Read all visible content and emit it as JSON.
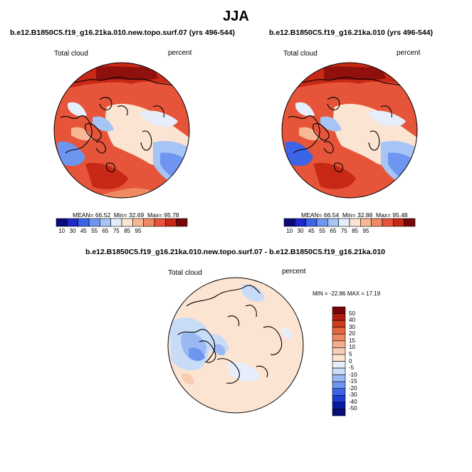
{
  "page_title": "JJA",
  "colors": {
    "red_scale": [
      "#0a0a7a",
      "#1e28c8",
      "#3c64e6",
      "#6e96f0",
      "#a6c4f6",
      "#e6eefb",
      "#fbe4d2",
      "#f7b896",
      "#f18a62",
      "#e6553a",
      "#c82816",
      "#78050a"
    ],
    "diff_scale": [
      "#0a0a7a",
      "#0a1aa0",
      "#1e3cd2",
      "#3c64e6",
      "#6e96f0",
      "#9ab8f4",
      "#c8dcf8",
      "#e6eefb",
      "#fbe4d2",
      "#f8cdb4",
      "#f4ae8c",
      "#ee8a62",
      "#e6663e",
      "#d23c1e",
      "#b41c10",
      "#78050a"
    ],
    "land_line": "#000000"
  },
  "panels": [
    {
      "id": "left",
      "title": "b.e12.B1850C5.f19_g16.21ka.010.new.topo.surf.07 (yrs 496-544)",
      "variable": "Total cloud",
      "units": "percent",
      "stats": {
        "mean": "66.52",
        "min": "32.69",
        "max": "95.78"
      },
      "stats_labels": {
        "mean": "MEAN=",
        "min": "Min=",
        "max": "Max="
      },
      "colorbar_labels": [
        "10",
        "30",
        "45",
        "55",
        "65",
        "75",
        "85",
        "95"
      ]
    },
    {
      "id": "right",
      "title": "b.e12.B1850C5.f19_g16.21ka.010 (yrs 496-544)",
      "variable": "Total cloud",
      "units": "percent",
      "stats": {
        "mean": "66.54",
        "min": "32.88",
        "max": "95.48"
      },
      "stats_labels": {
        "mean": "MEAN=",
        "min": "Min=",
        "max": "Max="
      },
      "colorbar_labels": [
        "10",
        "30",
        "45",
        "55",
        "65",
        "75",
        "85",
        "95"
      ]
    }
  ],
  "diff_panel": {
    "title": "b.e12.B1850C5.f19_g16.21ka.010.new.topo.surf.07 - b.e12.B1850C5.f19_g16.21ka.010",
    "variable": "Total cloud",
    "units": "percent",
    "minmax_text": "MIN = -22.86 MAX =  17.19",
    "colorbar_labels": [
      "50",
      "40",
      "30",
      "20",
      "15",
      "10",
      "5",
      "0",
      "-5",
      "-10",
      "-15",
      "-20",
      "-30",
      "-40",
      "-50"
    ]
  }
}
